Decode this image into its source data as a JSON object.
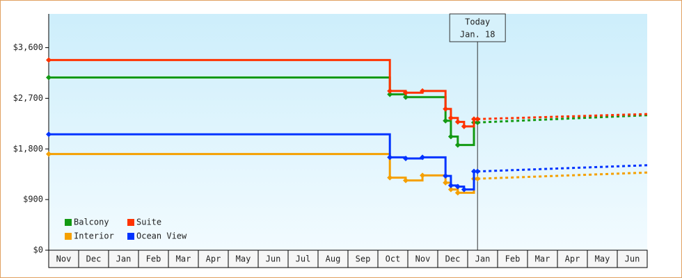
{
  "chart_data": {
    "type": "step-line",
    "categories": [
      "Nov",
      "Dec",
      "Jan",
      "Feb",
      "Mar",
      "Apr",
      "May",
      "Jun",
      "Jul",
      "Aug",
      "Sep",
      "Oct",
      "Nov",
      "Dec",
      "Jan",
      "Feb",
      "Mar",
      "Apr",
      "May",
      "Jun"
    ],
    "xlim": [
      0,
      20
    ],
    "ylim": [
      0,
      4200
    ],
    "yticks": [
      {
        "value": 0,
        "label": "$0"
      },
      {
        "value": 900,
        "label": "$900"
      },
      {
        "value": 1800,
        "label": "$1,800"
      },
      {
        "value": 2700,
        "label": "$2,700"
      },
      {
        "value": 3600,
        "label": "$3,600"
      }
    ],
    "annotation": {
      "lines": [
        "Today",
        "Jan. 18"
      ],
      "x": 14.33
    },
    "legend": "bottom-left",
    "series": [
      {
        "name": "Balcony",
        "color": "#139a13",
        "x": [
          0,
          11.4,
          11.93,
          13.26,
          13.44,
          13.67,
          14.21,
          14.33
        ],
        "values": [
          3070,
          2770,
          2720,
          2300,
          2020,
          1870,
          2270,
          2270
        ],
        "forecast_x": [
          14.33,
          20
        ],
        "forecast_values": [
          2270,
          2400
        ]
      },
      {
        "name": "Suite",
        "color": "#ff3300",
        "x": [
          0,
          11.4,
          11.93,
          12.49,
          13.26,
          13.44,
          13.67,
          13.88,
          14.21,
          14.33
        ],
        "values": [
          3380,
          2830,
          2800,
          2830,
          2510,
          2350,
          2280,
          2200,
          2330,
          2330
        ],
        "forecast_x": [
          14.33,
          20
        ],
        "forecast_values": [
          2330,
          2420
        ]
      },
      {
        "name": "Interior",
        "color": "#f5a000",
        "x": [
          0,
          11.4,
          11.93,
          12.49,
          13.26,
          13.44,
          13.67,
          14.21,
          14.33
        ],
        "values": [
          1710,
          1290,
          1240,
          1330,
          1200,
          1080,
          1020,
          1270,
          1270
        ],
        "forecast_x": [
          14.33,
          20
        ],
        "forecast_values": [
          1270,
          1380
        ]
      },
      {
        "name": "Ocean View",
        "color": "#0033ff",
        "x": [
          0,
          11.4,
          11.93,
          12.49,
          13.26,
          13.44,
          13.67,
          13.88,
          14.21,
          14.33
        ],
        "values": [
          2060,
          1650,
          1630,
          1650,
          1320,
          1150,
          1130,
          1080,
          1400,
          1400
        ],
        "forecast_x": [
          14.33,
          20
        ],
        "forecast_values": [
          1400,
          1510
        ]
      }
    ]
  }
}
